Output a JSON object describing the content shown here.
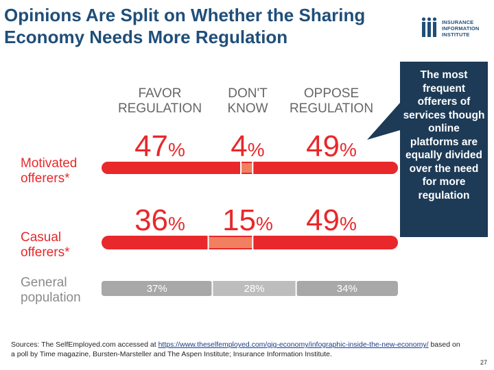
{
  "slide": {
    "title": "Opinions Are Split on Whether the Sharing Economy Needs More Regulation",
    "logo_lines": [
      "INSURANCE",
      "INFORMATION",
      "INSTITUTE"
    ],
    "callout": "The most frequent offerers of services though online platforms are equally divided over the need for more regulation",
    "sources_prefix": "Sources: The SelfEmployed.com accessed at ",
    "sources_link": "https://www.theselfemployed.com/gig-economy/infographic-inside-the-new-economy/",
    "sources_suffix": " based on a poll by Time magazine, Bursten-Marsteller and The Aspen Institute; Insurance Information Institute.",
    "page_number": "27"
  },
  "chart_data": {
    "type": "bar",
    "orientation": "horizontal-stacked",
    "columns": [
      "FAVOR REGULATION",
      "DON'T KNOW",
      "OPPOSE REGULATION"
    ],
    "rows": [
      {
        "label": "Motivated offerers*",
        "values": [
          47,
          4,
          49
        ],
        "labels": [
          "47%",
          "4%",
          "49%"
        ]
      },
      {
        "label": "Casual offerers*",
        "values": [
          36,
          15,
          49
        ],
        "labels": [
          "36%",
          "15%",
          "49%"
        ]
      },
      {
        "label": "General population",
        "values": [
          37,
          28,
          34
        ],
        "labels": [
          "37%",
          "28%",
          "34%"
        ]
      }
    ],
    "colors": {
      "favor": "#e8282b",
      "dont_know": "#f08060",
      "oppose": "#e8282b",
      "general_favor": "#a8a8a8",
      "general_dont_know": "#bdbdbd",
      "general_oppose": "#a8a8a8",
      "big_number": "#e8282b",
      "row_label": "#e8282b",
      "general_label": "#8a8a8a",
      "header": "#666666"
    }
  }
}
